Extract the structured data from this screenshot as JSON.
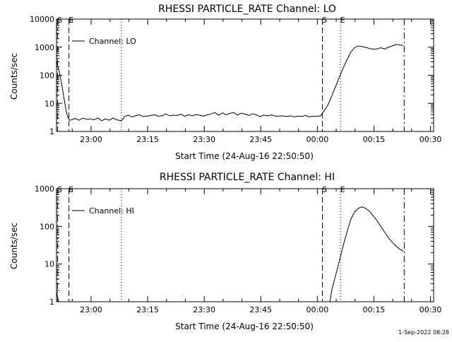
{
  "footer_timestamp": "1-Sep-2022 08:28",
  "chart_data": [
    {
      "type": "line",
      "title": "RHESSI PARTICLE_RATE Channel: LO",
      "xlabel": "Start Time (24-Aug-16 22:50:50)",
      "ylabel": "Counts/sec",
      "x_unit": "minutes since 22:50:50",
      "xlim": [
        0,
        100
      ],
      "ylim": [
        1,
        10000
      ],
      "yscale": "log",
      "xticks": [
        {
          "v": 9.17,
          "label": "23:00"
        },
        {
          "v": 24.17,
          "label": "23:15"
        },
        {
          "v": 39.17,
          "label": "23:30"
        },
        {
          "v": 54.17,
          "label": "23:45"
        },
        {
          "v": 69.17,
          "label": "00:00"
        },
        {
          "v": 84.17,
          "label": "00:15"
        },
        {
          "v": 99.17,
          "label": "00:30"
        }
      ],
      "yticks": [
        {
          "v": 1,
          "label": "1"
        },
        {
          "v": 10,
          "label": "10"
        },
        {
          "v": 100,
          "label": "100"
        },
        {
          "v": 1000,
          "label": "1000"
        },
        {
          "v": 10000,
          "label": "10000"
        }
      ],
      "legend": {
        "label": "Channel: LO",
        "position": "top-left"
      },
      "grid": false,
      "markers": [
        {
          "x": 0.3,
          "style": "dashdot",
          "label": "S"
        },
        {
          "x": 3.3,
          "style": "dashed",
          "label": "E"
        },
        {
          "x": 17.2,
          "style": "dotted",
          "label": ""
        },
        {
          "x": 70.5,
          "style": "dashed",
          "label": "S"
        },
        {
          "x": 75.3,
          "style": "dotted",
          "label": "E"
        },
        {
          "x": 92.2,
          "style": "dashdot",
          "label": ""
        }
      ],
      "series": [
        {
          "name": "Channel: LO",
          "x": [
            0,
            0.5,
            1,
            1.5,
            2,
            2.5,
            3,
            3.5,
            4,
            5,
            6,
            7,
            8,
            9,
            10,
            11,
            12,
            13,
            14,
            15,
            16,
            17,
            17.5,
            18,
            19,
            20,
            21,
            22,
            23,
            24,
            25,
            26,
            27,
            28,
            29,
            30,
            31,
            32,
            33,
            34,
            35,
            36,
            37,
            38,
            39,
            40,
            41,
            42,
            43,
            44,
            45,
            46,
            47,
            48,
            49,
            50,
            51,
            52,
            53,
            54,
            55,
            56,
            57,
            58,
            59,
            60,
            61,
            62,
            63,
            64,
            65,
            66,
            67,
            68,
            69,
            70,
            70.5,
            71,
            72,
            73,
            74,
            75,
            76,
            77,
            78,
            79,
            80,
            81,
            82,
            83,
            84,
            85,
            86,
            87,
            88,
            89,
            90,
            91,
            92
          ],
          "y": [
            300,
            180,
            90,
            40,
            15,
            6,
            3.2,
            2.5,
            2.6,
            2.9,
            2.5,
            3,
            2.7,
            2.8,
            2.6,
            3,
            2.4,
            2.8,
            2.5,
            3,
            2.6,
            2.4,
            2.6,
            3.4,
            3.8,
            3.3,
            3.6,
            3.9,
            3.4,
            3.5,
            3.7,
            3.9,
            3.5,
            3.6,
            4.2,
            3.6,
            3.8,
            3.7,
            4.1,
            3.5,
            3.9,
            3.6,
            4,
            3.8,
            3.5,
            3.9,
            4.2,
            4.7,
            3.8,
            4.6,
            3.9,
            4.4,
            4.7,
            3.8,
            4.5,
            4.1,
            3.7,
            4.2,
            3.9,
            3.4,
            3.8,
            3.6,
            3.9,
            3.5,
            3.5,
            3.6,
            3.4,
            3.6,
            3.3,
            3.5,
            3.4,
            3.7,
            3.3,
            3.5,
            3.4,
            3.6,
            4.5,
            5.5,
            9,
            18,
            40,
            85,
            180,
            350,
            650,
            950,
            1100,
            1050,
            980,
            900,
            850,
            870,
            960,
            860,
            990,
            1100,
            1250,
            1200,
            1150
          ]
        }
      ]
    },
    {
      "type": "line",
      "title": "RHESSI PARTICLE_RATE Channel: HI",
      "xlabel": "Start Time (24-Aug-16 22:50:50)",
      "ylabel": "Counts/sec",
      "x_unit": "minutes since 22:50:50",
      "xlim": [
        0,
        100
      ],
      "ylim": [
        1,
        1000
      ],
      "yscale": "log",
      "xticks": [
        {
          "v": 9.17,
          "label": "23:00"
        },
        {
          "v": 24.17,
          "label": "23:15"
        },
        {
          "v": 39.17,
          "label": "23:30"
        },
        {
          "v": 54.17,
          "label": "23:45"
        },
        {
          "v": 69.17,
          "label": "00:00"
        },
        {
          "v": 84.17,
          "label": "00:15"
        },
        {
          "v": 99.17,
          "label": "00:30"
        }
      ],
      "yticks": [
        {
          "v": 1,
          "label": "1"
        },
        {
          "v": 10,
          "label": "10"
        },
        {
          "v": 100,
          "label": "100"
        },
        {
          "v": 1000,
          "label": "1000"
        }
      ],
      "legend": {
        "label": "Channel: HI",
        "position": "top-left"
      },
      "grid": false,
      "markers": [
        {
          "x": 0.3,
          "style": "dashdot",
          "label": "S"
        },
        {
          "x": 3.3,
          "style": "dashed",
          "label": "E"
        },
        {
          "x": 17.2,
          "style": "dotted",
          "label": ""
        },
        {
          "x": 70.5,
          "style": "dashed",
          "label": "S"
        },
        {
          "x": 75.3,
          "style": "dotted",
          "label": "E"
        },
        {
          "x": 92.2,
          "style": "dashdot",
          "label": ""
        }
      ],
      "series": [
        {
          "name": "Channel: HI",
          "x": [
            0,
            0.3,
            0.6,
            72.5,
            73,
            74,
            75,
            76,
            77,
            78,
            79,
            80,
            81,
            82,
            83,
            84,
            85,
            86,
            87,
            88,
            89,
            90,
            91,
            92
          ],
          "y": [
            1.8,
            1.3,
            1,
            1,
            2,
            5,
            12,
            30,
            70,
            150,
            240,
            300,
            330,
            300,
            250,
            190,
            140,
            100,
            70,
            50,
            38,
            30,
            25,
            22
          ]
        }
      ]
    }
  ]
}
